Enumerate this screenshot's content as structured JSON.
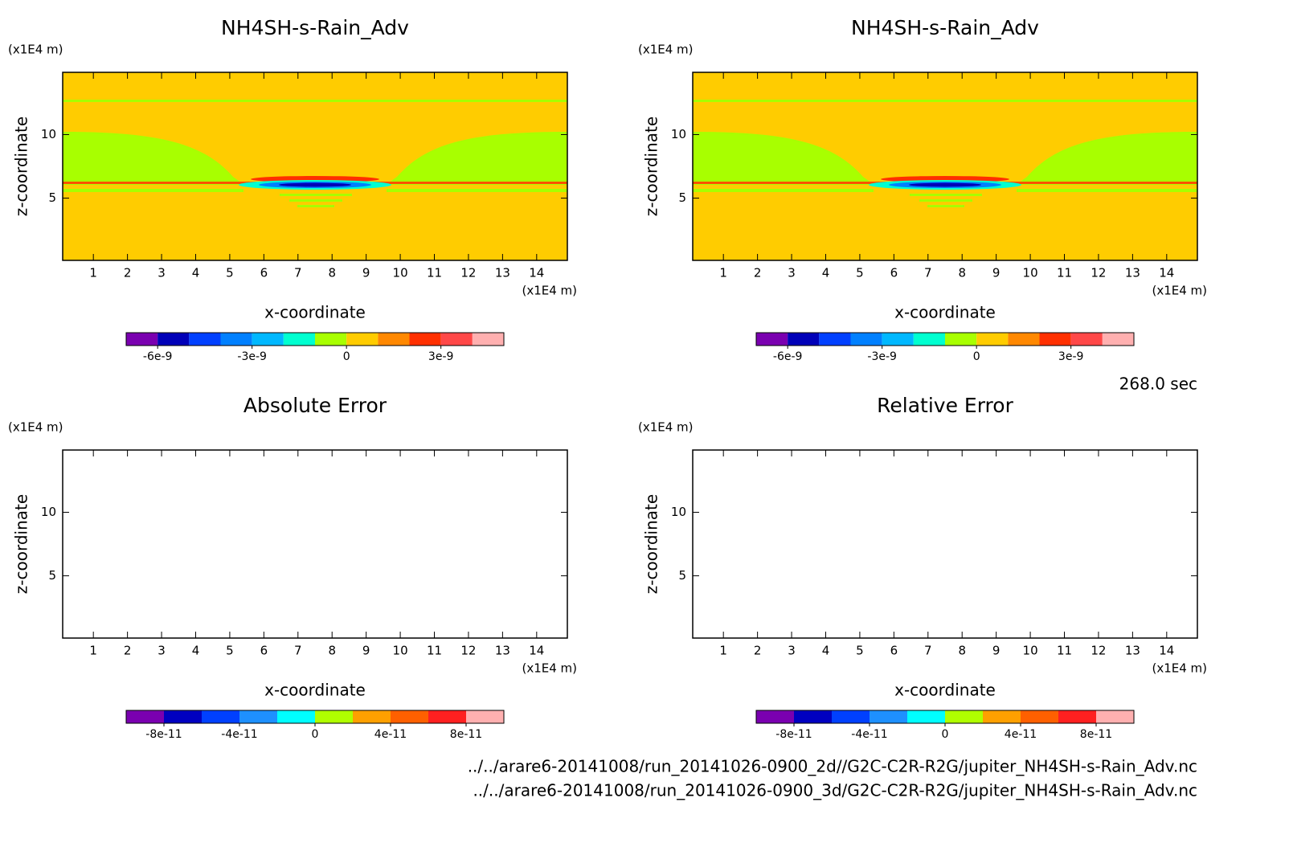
{
  "chart_data": [
    {
      "type": "contour",
      "title": "NH4SH-s-Rain_Adv",
      "xlabel": "x-coordinate",
      "ylabel": "z-coordinate",
      "xunit": "(x1E4 m)",
      "yunit": "(x1E4 m)",
      "xlim": [
        0.1,
        14.9
      ],
      "ylim": [
        0.1,
        14.9
      ],
      "xticks": [
        1,
        2,
        3,
        4,
        5,
        6,
        7,
        8,
        9,
        10,
        11,
        12,
        13,
        14
      ],
      "yticks": [
        5,
        10
      ],
      "colorbar": {
        "levels": [
          -7e-09,
          -6e-09,
          -5e-09,
          -4e-09,
          -3e-09,
          -2e-09,
          -1e-09,
          0,
          1e-09,
          2e-09,
          3e-09,
          4e-09,
          5e-09
        ],
        "colors": [
          "#7a00b0",
          "#0000b8",
          "#0040ff",
          "#0080ff",
          "#00b8ff",
          "#00ffd0",
          "#a8ff00",
          "#ffcc00",
          "#ff8800",
          "#ff3000",
          "#ff4848",
          "#ffb0b0"
        ],
        "ticks": [
          -6e-09,
          -3e-09,
          0,
          3e-09
        ]
      }
    },
    {
      "type": "contour",
      "title": "NH4SH-s-Rain_Adv",
      "xlabel": "x-coordinate",
      "ylabel": "z-coordinate",
      "xunit": "(x1E4 m)",
      "yunit": "(x1E4 m)",
      "xlim": [
        0.1,
        14.9
      ],
      "ylim": [
        0.1,
        14.9
      ],
      "xticks": [
        1,
        2,
        3,
        4,
        5,
        6,
        7,
        8,
        9,
        10,
        11,
        12,
        13,
        14
      ],
      "yticks": [
        5,
        10
      ],
      "colorbar": {
        "levels": [
          -7e-09,
          -6e-09,
          -5e-09,
          -4e-09,
          -3e-09,
          -2e-09,
          -1e-09,
          0,
          1e-09,
          2e-09,
          3e-09,
          4e-09,
          5e-09
        ],
        "colors": [
          "#7a00b0",
          "#0000b8",
          "#0040ff",
          "#0080ff",
          "#00b8ff",
          "#00ffd0",
          "#a8ff00",
          "#ffcc00",
          "#ff8800",
          "#ff3000",
          "#ff4848",
          "#ffb0b0"
        ],
        "ticks": [
          -6e-09,
          -3e-09,
          0,
          3e-09
        ]
      }
    },
    {
      "type": "contour",
      "title": "Absolute Error",
      "xlabel": "x-coordinate",
      "ylabel": "z-coordinate",
      "xunit": "(x1E4 m)",
      "yunit": "(x1E4 m)",
      "xlim": [
        0.1,
        14.9
      ],
      "ylim": [
        0.1,
        14.9
      ],
      "xticks": [
        1,
        2,
        3,
        4,
        5,
        6,
        7,
        8,
        9,
        10,
        11,
        12,
        13,
        14
      ],
      "yticks": [
        5,
        10
      ],
      "colorbar": {
        "levels": [
          -1e-10,
          -8e-11,
          -6e-11,
          -4e-11,
          -2e-11,
          0,
          2e-11,
          4e-11,
          6e-11,
          8e-11,
          1e-10
        ],
        "colors": [
          "#7a00b0",
          "#0000c0",
          "#0040ff",
          "#1e90ff",
          "#00ffff",
          "#b0ff00",
          "#ffa000",
          "#ff6000",
          "#ff2020",
          "#ffb0b0"
        ],
        "ticks": [
          -8e-11,
          -4e-11,
          0,
          4e-11,
          8e-11
        ]
      }
    },
    {
      "type": "contour",
      "title": "Relative Error",
      "xlabel": "x-coordinate",
      "ylabel": "z-coordinate",
      "xunit": "(x1E4 m)",
      "yunit": "(x1E4 m)",
      "xlim": [
        0.1,
        14.9
      ],
      "ylim": [
        0.1,
        14.9
      ],
      "xticks": [
        1,
        2,
        3,
        4,
        5,
        6,
        7,
        8,
        9,
        10,
        11,
        12,
        13,
        14
      ],
      "yticks": [
        5,
        10
      ],
      "colorbar": {
        "levels": [
          -1e-10,
          -8e-11,
          -6e-11,
          -4e-11,
          -2e-11,
          0,
          2e-11,
          4e-11,
          6e-11,
          8e-11,
          1e-10
        ],
        "colors": [
          "#7a00b0",
          "#0000c0",
          "#0040ff",
          "#1e90ff",
          "#00ffff",
          "#b0ff00",
          "#ffa000",
          "#ff6000",
          "#ff2020",
          "#ffb0b0"
        ],
        "ticks": [
          -8e-11,
          -4e-11,
          0,
          4e-11,
          8e-11
        ]
      }
    }
  ],
  "time": "268.0 sec",
  "files": [
    "../../arare6-20141008/run_20141026-0900_2d//G2C-C2R-R2G/jupiter_NH4SH-s-Rain_Adv.nc",
    "../../arare6-20141008/run_20141026-0900_3d/G2C-C2R-R2G/jupiter_NH4SH-s-Rain_Adv.nc"
  ]
}
